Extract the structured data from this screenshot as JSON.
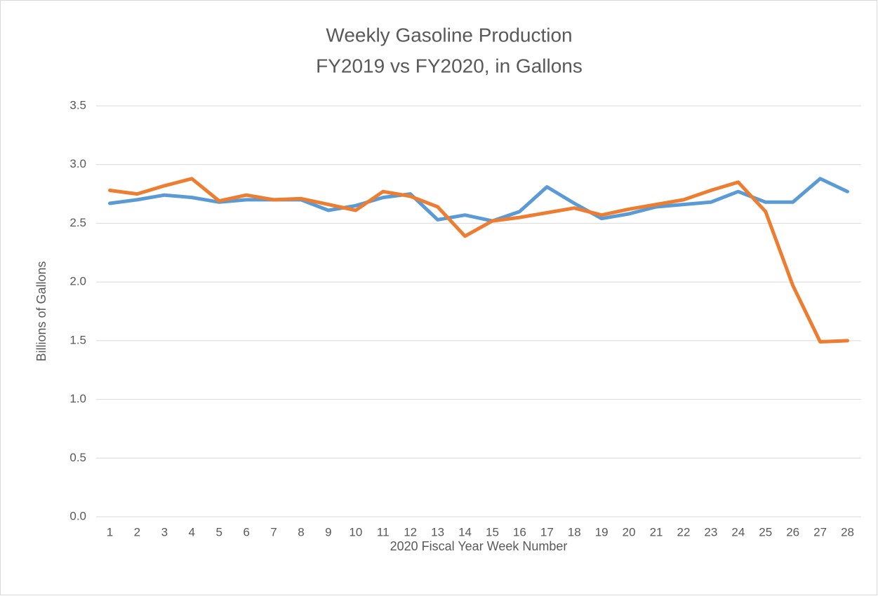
{
  "chart_data": {
    "type": "line",
    "title": "Weekly Gasoline Production",
    "subtitle": "FY2019 vs FY2020, in Gallons",
    "x_label": "2020 Fiscal Year Week Number",
    "y_label": "Billions of Gallons",
    "categories": [
      1,
      2,
      3,
      4,
      5,
      6,
      7,
      8,
      9,
      10,
      11,
      12,
      13,
      14,
      15,
      16,
      17,
      18,
      19,
      20,
      21,
      22,
      23,
      24,
      25,
      26,
      27,
      28
    ],
    "series": [
      {
        "color": "#5b9bd5",
        "values": [
          2.67,
          2.7,
          2.74,
          2.72,
          2.68,
          2.7,
          2.7,
          2.7,
          2.61,
          2.65,
          2.72,
          2.75,
          2.53,
          2.57,
          2.52,
          2.6,
          2.81,
          2.67,
          2.54,
          2.58,
          2.64,
          2.66,
          2.68,
          2.77,
          2.68,
          2.68,
          2.88,
          2.77
        ]
      },
      {
        "color": "#ed7d31",
        "values": [
          2.78,
          2.75,
          2.82,
          2.88,
          2.69,
          2.74,
          2.7,
          2.71,
          2.66,
          2.61,
          2.77,
          2.73,
          2.64,
          2.39,
          2.52,
          2.55,
          2.59,
          2.63,
          2.57,
          2.62,
          2.66,
          2.7,
          2.78,
          2.85,
          2.6,
          1.97,
          1.49,
          1.5
        ]
      }
    ],
    "ylim": [
      0,
      3.5
    ],
    "yticks": [
      {
        "value": 0,
        "label": "0.0"
      },
      0.5,
      {
        "value": 1,
        "label": "1.0"
      },
      1.5,
      {
        "value": 2,
        "label": "2.0"
      },
      2.5,
      {
        "value": 3,
        "label": "3.0"
      },
      3.5
    ],
    "grid": true
  }
}
